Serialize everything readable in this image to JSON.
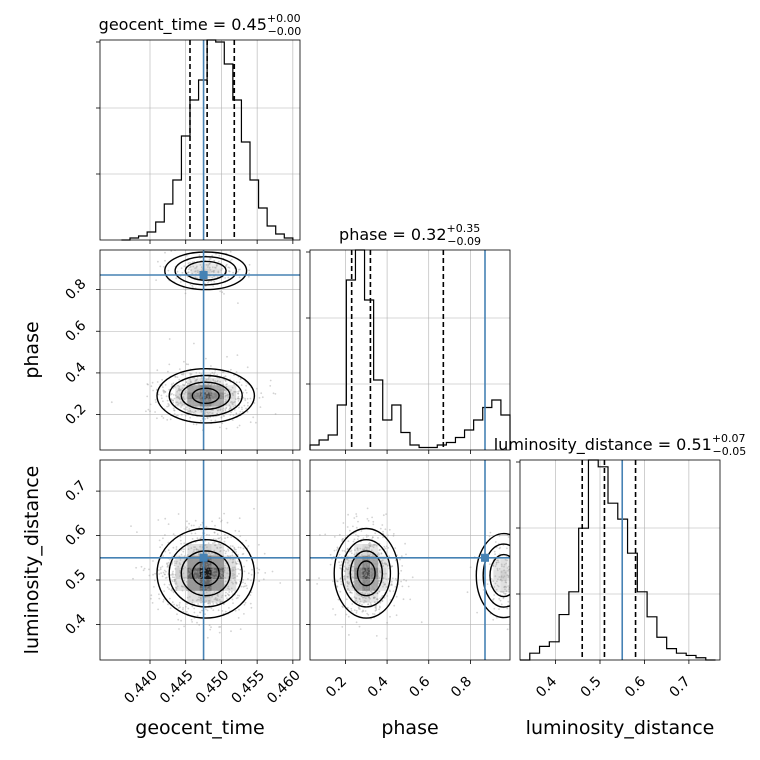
{
  "chart_data": {
    "type": "corner",
    "parameters": [
      "geocent_time",
      "phase",
      "luminosity_distance"
    ],
    "truths": {
      "geocent_time": 0.4475,
      "phase": 0.87,
      "luminosity_distance": 0.55
    },
    "marginals": [
      {
        "param": "geocent_time",
        "title_name": "geocent_time",
        "title_median": "0.45",
        "title_plus": "+0.00",
        "title_minus": "−0.00",
        "median": 0.448,
        "q16": 0.4456,
        "q84": 0.4518,
        "hist_range": [
          0.436,
          0.46
        ],
        "hist_counts": [
          0,
          1,
          2,
          4,
          9,
          18,
          30,
          52,
          70,
          80,
          100,
          99,
          88,
          70,
          49,
          30,
          16,
          7,
          3,
          1
        ],
        "xlim": [
          0.433,
          0.461
        ],
        "xticks": [
          0.44,
          0.445,
          0.45,
          0.455,
          0.46
        ],
        "xtick_labels": [
          "0.440",
          "0.445",
          "0.450",
          "0.455",
          "0.460"
        ]
      },
      {
        "param": "phase",
        "title_name": "phase",
        "title_median": "0.32",
        "title_plus": "+0.35",
        "title_minus": "−0.09",
        "median": 0.32,
        "q16": 0.23,
        "q84": 0.67,
        "hist_range": [
          0.03,
          0.99
        ],
        "hist_counts": [
          2,
          4,
          6,
          18,
          68,
          80,
          60,
          28,
          12,
          18,
          7,
          2,
          1,
          1,
          2,
          3,
          5,
          8,
          12,
          17,
          20,
          14
        ],
        "xlim": [
          0.03,
          0.99
        ],
        "xticks": [
          0.2,
          0.4,
          0.6,
          0.8
        ],
        "xtick_labels": [
          "0.2",
          "0.4",
          "0.6",
          "0.8"
        ]
      },
      {
        "param": "luminosity_distance",
        "title_name": "luminosity_distance",
        "title_median": "0.51",
        "title_plus": "+0.07",
        "title_minus": "−0.05",
        "median": 0.51,
        "q16": 0.46,
        "q84": 0.58,
        "hist_range": [
          0.32,
          0.76
        ],
        "hist_counts": [
          0,
          3,
          6,
          8,
          20,
          30,
          58,
          88,
          85,
          69,
          62,
          47,
          30,
          19,
          10,
          5,
          3,
          2,
          1,
          0
        ],
        "xlim": [
          0.32,
          0.77
        ],
        "xticks": [
          0.4,
          0.5,
          0.6,
          0.7
        ],
        "xtick_labels": [
          "0.4",
          "0.5",
          "0.6",
          "0.7"
        ]
      }
    ],
    "pairs": [
      {
        "x": "geocent_time",
        "y": "phase",
        "xlim": [
          0.433,
          0.461
        ],
        "ylim": [
          0.03,
          0.99
        ],
        "yticks": [
          0.2,
          0.4,
          0.6,
          0.8
        ],
        "ytick_labels": [
          "0.2",
          "0.4",
          "0.6",
          "0.8"
        ],
        "modes": [
          {
            "cx": 0.4478,
            "cy": 0.29,
            "sx": 0.0031,
            "sy": 0.062,
            "w": 0.8
          },
          {
            "cx": 0.4478,
            "cy": 0.89,
            "sx": 0.0026,
            "sy": 0.043,
            "w": 0.2
          }
        ]
      },
      {
        "x": "geocent_time",
        "y": "luminosity_distance",
        "xlim": [
          0.433,
          0.461
        ],
        "ylim": [
          0.32,
          0.77
        ],
        "yticks": [
          0.4,
          0.5,
          0.6,
          0.7
        ],
        "ytick_labels": [
          "0.4",
          "0.5",
          "0.6",
          "0.7"
        ],
        "modes": [
          {
            "cx": 0.4478,
            "cy": 0.515,
            "sx": 0.0031,
            "sy": 0.048,
            "w": 1.0
          }
        ]
      },
      {
        "x": "phase",
        "y": "luminosity_distance",
        "xlim": [
          0.03,
          0.99
        ],
        "ylim": [
          0.32,
          0.77
        ],
        "yticks": [
          0.4,
          0.5,
          0.6,
          0.7
        ],
        "ytick_labels": [
          "0.4",
          "0.5",
          "0.6",
          "0.7"
        ],
        "modes": [
          {
            "cx": 0.3,
            "cy": 0.515,
            "sx": 0.07,
            "sy": 0.048,
            "w": 0.8
          },
          {
            "cx": 0.96,
            "cy": 0.51,
            "sx": 0.06,
            "sy": 0.045,
            "w": 0.2
          }
        ]
      }
    ],
    "contour_levels": [
      0.39,
      0.86,
      0.99
    ],
    "axis_labels": {
      "geocent_time": "geocent_time",
      "phase": "phase",
      "luminosity_distance": "luminosity_distance"
    },
    "grid": true,
    "colors": {
      "truth": "#4682b4",
      "hist": "#000000",
      "quantile": "#000000",
      "points": "#9e9e9e",
      "grid": "#b0b0b0"
    }
  }
}
